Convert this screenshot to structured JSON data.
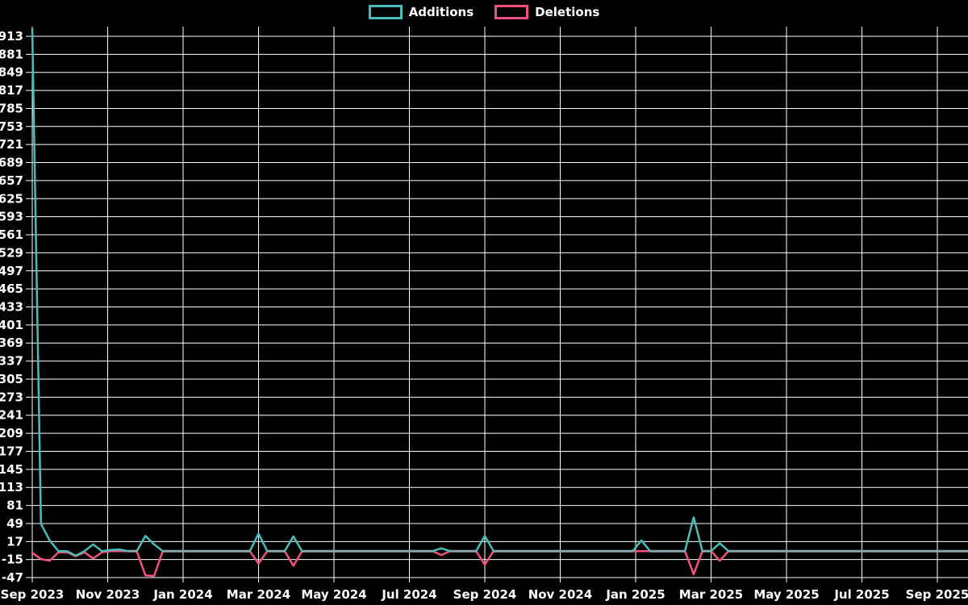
{
  "page": {
    "background": "#000000",
    "text_color": "#ffffff"
  },
  "legend": {
    "items": [
      {
        "label": "Additions",
        "color": "#4abcb8"
      },
      {
        "label": "Deletions",
        "color": "#f4527c"
      }
    ]
  },
  "chart_data": {
    "type": "line",
    "title": "",
    "xlabel": "",
    "ylabel": "",
    "grid": true,
    "legend_position": "top-center",
    "background": "#000000",
    "grid_color": "#ffffff",
    "zero_baseline_color": "#8ba4ad",
    "x_axis": {
      "unit": "week",
      "tick_labels": [
        "Sep 2023",
        "Nov 2023",
        "Jan 2024",
        "Mar 2024",
        "May 2024",
        "Jul 2024",
        "Sep 2024",
        "Nov 2024",
        "Jan 2025",
        "Mar 2025",
        "May 2025",
        "Jul 2025",
        "Sep 2025"
      ]
    },
    "y_axis": {
      "min": -47,
      "max": 913,
      "step": 32,
      "ticks": [
        913,
        881,
        849,
        817,
        785,
        753,
        721,
        689,
        657,
        625,
        593,
        561,
        529,
        497,
        465,
        433,
        401,
        369,
        337,
        305,
        273,
        241,
        209,
        177,
        145,
        113,
        81,
        49,
        17,
        -15,
        -47
      ]
    },
    "series": [
      {
        "name": "Additions",
        "color": "#4abcb8",
        "weekly_values": [
          926,
          48,
          19,
          0,
          0,
          -8,
          0,
          12,
          0,
          2,
          3,
          0,
          0,
          27,
          12,
          0,
          0,
          0,
          0,
          0,
          0,
          0,
          0,
          0,
          0,
          0,
          31,
          0,
          0,
          0,
          26,
          0,
          0,
          0,
          0,
          0,
          0,
          0,
          0,
          0,
          0,
          0,
          0,
          0,
          0,
          0,
          0,
          5,
          0,
          0,
          0,
          0,
          27,
          0,
          0,
          0,
          0,
          0,
          0,
          0,
          0,
          0,
          0,
          0,
          0,
          0,
          0,
          0,
          0,
          0,
          19,
          0,
          0,
          0,
          0,
          0,
          60,
          0,
          0,
          14,
          0,
          0,
          0,
          0,
          0,
          0,
          0,
          0,
          0,
          0,
          0,
          0,
          0,
          0,
          0,
          0,
          0,
          0,
          0,
          0,
          0,
          0,
          0,
          0,
          0
        ]
      },
      {
        "name": "Deletions",
        "color": "#f4527c",
        "weekly_values": [
          -3,
          -14,
          -17,
          -2,
          -2,
          -9,
          -2,
          -13,
          -2,
          0,
          0,
          0,
          0,
          -43,
          -44,
          0,
          0,
          0,
          0,
          0,
          0,
          0,
          0,
          0,
          0,
          0,
          -22,
          0,
          0,
          0,
          -26,
          0,
          0,
          0,
          0,
          0,
          0,
          0,
          0,
          0,
          0,
          0,
          0,
          0,
          0,
          0,
          0,
          -7,
          0,
          0,
          0,
          0,
          -24,
          0,
          0,
          0,
          0,
          0,
          0,
          0,
          0,
          0,
          0,
          0,
          0,
          0,
          0,
          0,
          0,
          0,
          0,
          0,
          0,
          0,
          0,
          0,
          -41,
          0,
          0,
          -17,
          0,
          0,
          0,
          0,
          0,
          0,
          0,
          0,
          0,
          0,
          0,
          0,
          0,
          0,
          0,
          0,
          0,
          0,
          0,
          0,
          0,
          0,
          0,
          0,
          0
        ]
      }
    ]
  }
}
